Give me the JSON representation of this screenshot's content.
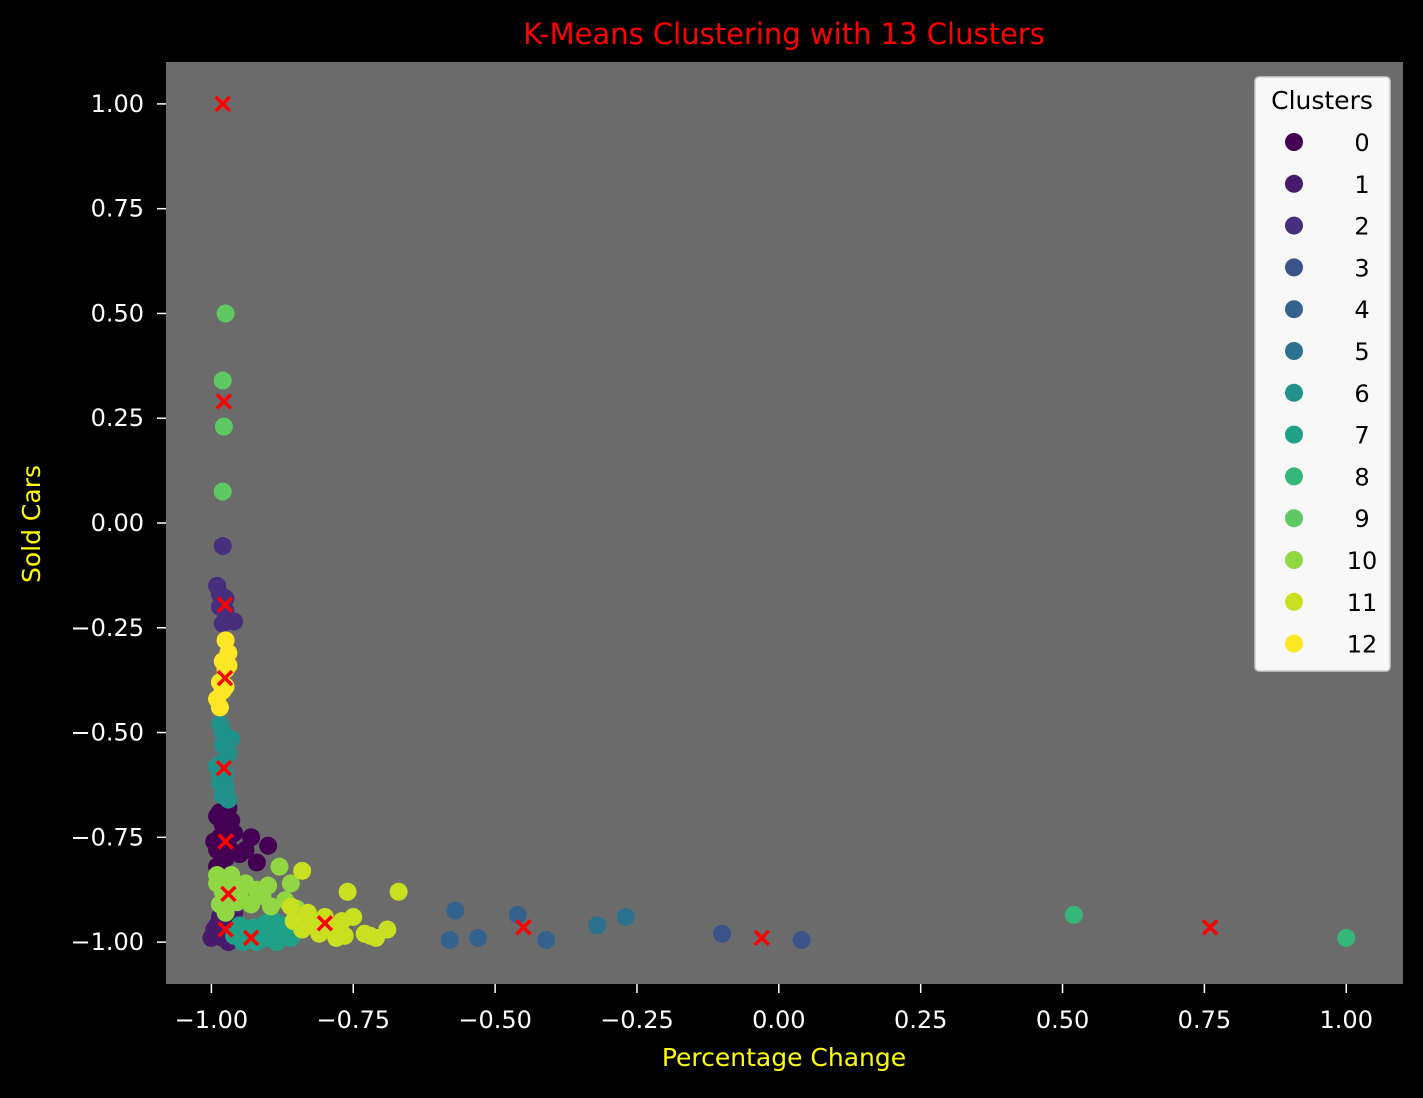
{
  "chart_data": {
    "type": "scatter",
    "title": "K-Means Clustering with 13 Clusters",
    "xlabel": "Percentage Change",
    "ylabel": "Sold Cars",
    "xlim": [
      -1.08,
      1.1
    ],
    "ylim": [
      -1.1,
      1.1
    ],
    "xticks": [
      -1.0,
      -0.75,
      -0.5,
      -0.25,
      0.0,
      0.25,
      0.5,
      0.75,
      1.0
    ],
    "xtick_labels": [
      "−1.00",
      "−0.75",
      "−0.50",
      "−0.25",
      "0.00",
      "0.25",
      "0.50",
      "0.75",
      "1.00"
    ],
    "yticks": [
      1.0,
      0.75,
      0.5,
      0.25,
      0.0,
      -0.25,
      -0.5,
      -0.75,
      -1.0
    ],
    "ytick_labels": [
      "1.00",
      "0.75",
      "0.50",
      "0.25",
      "0.00",
      "−0.25",
      "−0.50",
      "−0.75",
      "−1.00"
    ],
    "grid": false,
    "legend": {
      "title": "Clusters",
      "placement": "top-right"
    },
    "colors": {
      "figure_background": "#000000",
      "axes_background": "#6b6b6b",
      "title": "#ff0000",
      "axis_labels": "#ffff00",
      "ticks": "#ffffff",
      "centroid": "#ff0000"
    },
    "series": [
      {
        "name": "0",
        "color": "#440154",
        "points": [
          [
            -0.99,
            -0.7
          ],
          [
            -0.98,
            -0.72
          ],
          [
            -0.985,
            -0.75
          ],
          [
            -0.99,
            -0.78
          ],
          [
            -0.975,
            -0.8
          ],
          [
            -0.99,
            -0.82
          ],
          [
            -0.97,
            -0.68
          ],
          [
            -0.96,
            -0.74
          ],
          [
            -0.95,
            -0.79
          ],
          [
            -0.93,
            -0.75
          ],
          [
            -0.92,
            -0.81
          ],
          [
            -0.9,
            -0.77
          ],
          [
            -0.995,
            -0.76
          ],
          [
            -0.98,
            -0.78
          ],
          [
            -0.97,
            -0.77
          ],
          [
            -0.965,
            -0.71
          ],
          [
            -0.985,
            -0.69
          ],
          [
            -0.94,
            -0.78
          ]
        ]
      },
      {
        "name": "1",
        "color": "#481a6c",
        "points": [
          [
            -0.99,
            -0.98
          ],
          [
            -0.98,
            -0.99
          ],
          [
            -0.975,
            -0.97
          ],
          [
            -0.97,
            -1.0
          ],
          [
            -0.99,
            -0.96
          ],
          [
            -0.985,
            -0.94
          ],
          [
            -0.96,
            -0.99
          ],
          [
            -0.95,
            -0.98
          ],
          [
            -0.94,
            -0.97
          ],
          [
            -0.97,
            -0.95
          ],
          [
            -1.0,
            -0.99
          ],
          [
            -0.995,
            -0.97
          ],
          [
            -0.98,
            -0.93
          ],
          [
            -0.96,
            -0.93
          ],
          [
            -0.955,
            -0.96
          ]
        ]
      },
      {
        "name": "2",
        "color": "#472f7d",
        "points": [
          [
            -0.98,
            -0.055
          ],
          [
            -0.99,
            -0.15
          ],
          [
            -0.975,
            -0.18
          ],
          [
            -0.985,
            -0.2
          ],
          [
            -0.97,
            -0.23
          ],
          [
            -0.96,
            -0.235
          ],
          [
            -0.98,
            -0.24
          ],
          [
            -0.975,
            -0.21
          ],
          [
            -0.985,
            -0.17
          ]
        ]
      },
      {
        "name": "3",
        "color": "#3b528b",
        "points": [
          [
            -0.1,
            -0.98
          ],
          [
            0.04,
            -0.995
          ]
        ]
      },
      {
        "name": "4",
        "color": "#33638d",
        "points": [
          [
            -0.57,
            -0.925
          ],
          [
            -0.53,
            -0.99
          ],
          [
            -0.58,
            -0.995
          ],
          [
            -0.46,
            -0.935
          ],
          [
            -0.41,
            -0.995
          ]
        ]
      },
      {
        "name": "5",
        "color": "#2c728e",
        "points": [
          [
            -0.32,
            -0.96
          ],
          [
            -0.27,
            -0.94
          ]
        ]
      },
      {
        "name": "6",
        "color": "#21918c",
        "points": [
          [
            -0.985,
            -0.48
          ],
          [
            -0.98,
            -0.5
          ],
          [
            -0.975,
            -0.52
          ],
          [
            -0.97,
            -0.55
          ],
          [
            -0.98,
            -0.57
          ],
          [
            -0.985,
            -0.6
          ],
          [
            -0.975,
            -0.63
          ],
          [
            -0.98,
            -0.65
          ],
          [
            -0.97,
            -0.66
          ],
          [
            -0.965,
            -0.515
          ],
          [
            -0.99,
            -0.58
          ],
          [
            -0.98,
            -0.53
          ],
          [
            -0.975,
            -0.6
          ],
          [
            -0.985,
            -0.62
          ]
        ]
      },
      {
        "name": "7",
        "color": "#1fa187",
        "points": [
          [
            -0.95,
            -0.96
          ],
          [
            -0.93,
            -0.98
          ],
          [
            -0.91,
            -0.97
          ],
          [
            -0.9,
            -0.99
          ],
          [
            -0.88,
            -0.98
          ],
          [
            -0.92,
            -1.0
          ],
          [
            -0.94,
            -0.99
          ],
          [
            -0.87,
            -0.96
          ],
          [
            -0.89,
            -0.95
          ],
          [
            -0.96,
            -0.985
          ],
          [
            -0.86,
            -0.99
          ],
          [
            -0.905,
            -0.955
          ],
          [
            -0.925,
            -0.965
          ],
          [
            -0.945,
            -1.0
          ],
          [
            -0.885,
            -1.0
          ],
          [
            -0.915,
            -0.985
          ]
        ]
      },
      {
        "name": "8",
        "color": "#35b779",
        "points": [
          [
            0.52,
            -0.935
          ],
          [
            1.0,
            -0.99
          ]
        ]
      },
      {
        "name": "9",
        "color": "#5ec962",
        "points": [
          [
            -0.975,
            0.5
          ],
          [
            -0.98,
            0.34
          ],
          [
            -0.978,
            0.23
          ],
          [
            -0.98,
            0.075
          ]
        ]
      },
      {
        "name": "10",
        "color": "#90d743",
        "points": [
          [
            -0.99,
            -0.86
          ],
          [
            -0.98,
            -0.88
          ],
          [
            -0.97,
            -0.9
          ],
          [
            -0.96,
            -0.87
          ],
          [
            -0.95,
            -0.89
          ],
          [
            -0.93,
            -0.91
          ],
          [
            -0.92,
            -0.875
          ],
          [
            -0.9,
            -0.865
          ],
          [
            -0.88,
            -0.82
          ],
          [
            -0.87,
            -0.9
          ],
          [
            -0.86,
            -0.86
          ],
          [
            -0.85,
            -0.92
          ],
          [
            -0.99,
            -0.84
          ],
          [
            -0.985,
            -0.91
          ],
          [
            -0.975,
            -0.93
          ],
          [
            -0.94,
            -0.86
          ],
          [
            -0.91,
            -0.89
          ],
          [
            -0.895,
            -0.915
          ],
          [
            -0.955,
            -0.905
          ],
          [
            -0.965,
            -0.84
          ]
        ]
      },
      {
        "name": "11",
        "color": "#c8e020",
        "points": [
          [
            -0.84,
            -0.83
          ],
          [
            -0.76,
            -0.88
          ],
          [
            -0.67,
            -0.88
          ],
          [
            -0.82,
            -0.96
          ],
          [
            -0.8,
            -0.94
          ],
          [
            -0.78,
            -0.99
          ],
          [
            -0.77,
            -0.95
          ],
          [
            -0.75,
            -0.94
          ],
          [
            -0.73,
            -0.98
          ],
          [
            -0.71,
            -0.99
          ],
          [
            -0.69,
            -0.97
          ],
          [
            -0.83,
            -0.93
          ],
          [
            -0.81,
            -0.98
          ],
          [
            -0.79,
            -0.97
          ],
          [
            -0.84,
            -0.97
          ],
          [
            -0.86,
            -0.915
          ],
          [
            -0.72,
            -0.985
          ],
          [
            -0.765,
            -0.985
          ],
          [
            -0.855,
            -0.95
          ]
        ]
      },
      {
        "name": "12",
        "color": "#fde725",
        "points": [
          [
            -0.975,
            -0.28
          ],
          [
            -0.97,
            -0.31
          ],
          [
            -0.98,
            -0.33
          ],
          [
            -0.975,
            -0.35
          ],
          [
            -0.985,
            -0.38
          ],
          [
            -0.98,
            -0.4
          ],
          [
            -0.99,
            -0.42
          ],
          [
            -0.985,
            -0.44
          ],
          [
            -0.97,
            -0.34
          ],
          [
            -0.975,
            -0.39
          ]
        ]
      }
    ],
    "centroids": [
      [
        -0.98,
        1.0
      ],
      [
        -0.978,
        0.29
      ],
      [
        -0.976,
        -0.195
      ],
      [
        -0.976,
        -0.37
      ],
      [
        -0.978,
        -0.585
      ],
      [
        -0.975,
        -0.76
      ],
      [
        -0.97,
        -0.885
      ],
      [
        -0.975,
        -0.97
      ],
      [
        -0.93,
        -0.99
      ],
      [
        -0.8,
        -0.955
      ],
      [
        -0.45,
        -0.965
      ],
      [
        -0.03,
        -0.99
      ],
      [
        0.76,
        -0.965
      ]
    ]
  }
}
